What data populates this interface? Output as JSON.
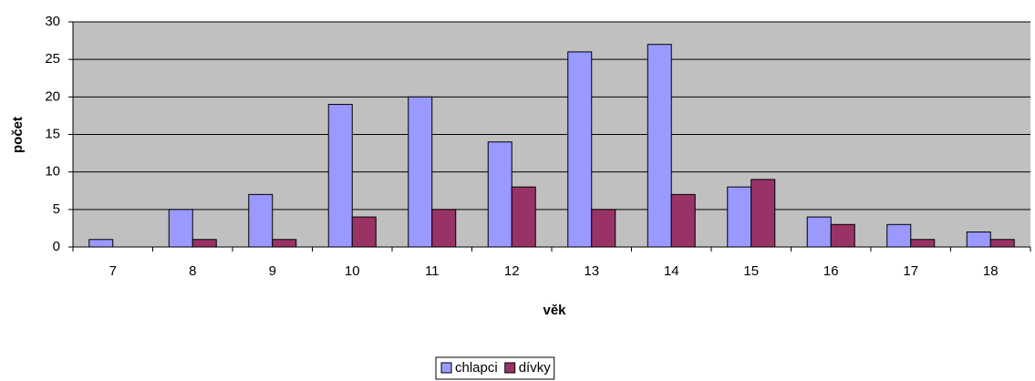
{
  "chart_data": {
    "type": "bar",
    "categories": [
      "7",
      "8",
      "9",
      "10",
      "11",
      "12",
      "13",
      "14",
      "15",
      "16",
      "17",
      "18"
    ],
    "series": [
      {
        "name": "chlapci",
        "color": "#9999ff",
        "values": [
          1,
          5,
          7,
          19,
          20,
          14,
          26,
          27,
          8,
          4,
          3,
          2
        ]
      },
      {
        "name": "dívky",
        "color": "#993366",
        "values": [
          0,
          1,
          1,
          4,
          5,
          8,
          5,
          7,
          9,
          3,
          1,
          1
        ]
      }
    ],
    "xlabel": "věk",
    "ylabel": "počet",
    "ylim": [
      0,
      30
    ],
    "yticks": [
      0,
      5,
      10,
      15,
      20,
      25,
      30
    ],
    "grid": true,
    "legend": "bottom"
  }
}
